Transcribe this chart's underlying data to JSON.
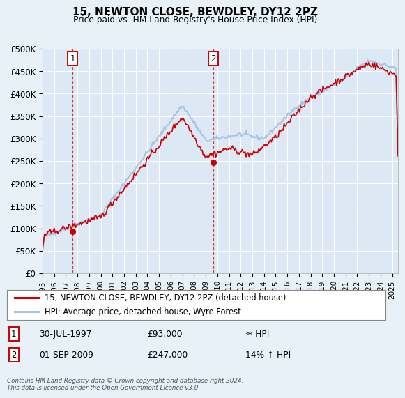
{
  "title": "15, NEWTON CLOSE, BEWDLEY, DY12 2PZ",
  "subtitle": "Price paid vs. HM Land Registry's House Price Index (HPI)",
  "ylabel_ticks": [
    "£0",
    "£50K",
    "£100K",
    "£150K",
    "£200K",
    "£250K",
    "£300K",
    "£350K",
    "£400K",
    "£450K",
    "£500K"
  ],
  "ytick_vals": [
    0,
    50000,
    100000,
    150000,
    200000,
    250000,
    300000,
    350000,
    400000,
    450000,
    500000
  ],
  "ylim": [
    0,
    500000
  ],
  "xlim_start": 1995.0,
  "xlim_end": 2025.5,
  "x_years": [
    1995,
    1996,
    1997,
    1998,
    1999,
    2000,
    2001,
    2002,
    2003,
    2004,
    2005,
    2006,
    2007,
    2008,
    2009,
    2010,
    2011,
    2012,
    2013,
    2014,
    2015,
    2016,
    2017,
    2018,
    2019,
    2020,
    2021,
    2022,
    2023,
    2024,
    2025
  ],
  "sale1_x": 1997.58,
  "sale1_y": 93000,
  "sale2_x": 2009.67,
  "sale2_y": 247000,
  "legend_line1": "15, NEWTON CLOSE, BEWDLEY, DY12 2PZ (detached house)",
  "legend_line2": "HPI: Average price, detached house, Wyre Forest",
  "annotation1_date": "30-JUL-1997",
  "annotation1_price": "£93,000",
  "annotation1_hpi": "≈ HPI",
  "annotation2_date": "01-SEP-2009",
  "annotation2_price": "£247,000",
  "annotation2_hpi": "14% ↑ HPI",
  "footer": "Contains HM Land Registry data © Crown copyright and database right 2024.\nThis data is licensed under the Open Government Licence v3.0.",
  "hpi_color": "#a8c4e0",
  "price_color": "#cc0000",
  "bg_color": "#e8f0f8",
  "plot_bg": "#dce8f5",
  "grid_color": "#ffffff",
  "annotation_box_color": "#cc0000"
}
